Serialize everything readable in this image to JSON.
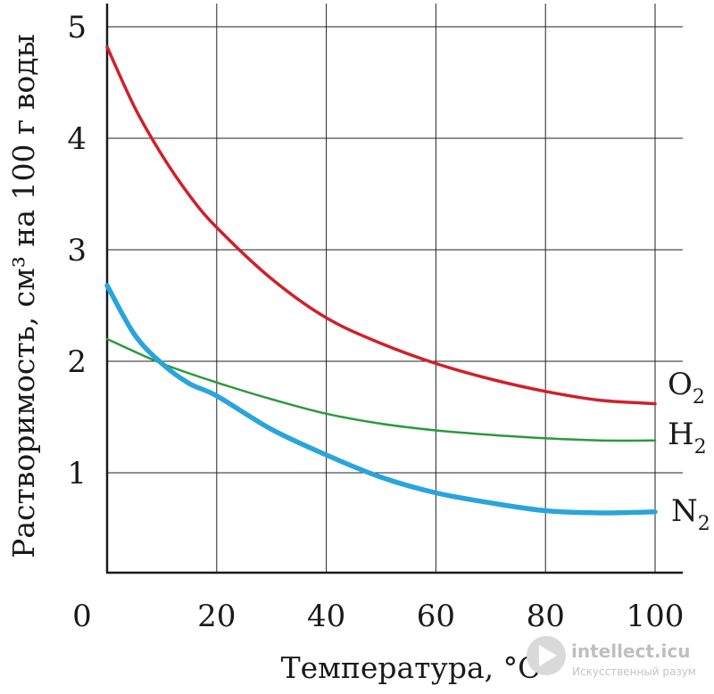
{
  "chart_data": {
    "type": "line",
    "xlabel": "Температура, °C",
    "ylabel": "Растворимость, см³ на 100 г воды",
    "xlim": [
      0,
      105
    ],
    "ylim": [
      0,
      5.2
    ],
    "x_ticks": [
      {
        "value": 0,
        "label": "0"
      },
      {
        "value": 20,
        "label": "20"
      },
      {
        "value": 40,
        "label": "40"
      },
      {
        "value": 60,
        "label": "60"
      },
      {
        "value": 80,
        "label": "80"
      },
      {
        "value": 100,
        "label": "100"
      }
    ],
    "y_ticks": [
      {
        "value": 1,
        "label": "1"
      },
      {
        "value": 2,
        "label": "2"
      },
      {
        "value": 3,
        "label": "3"
      },
      {
        "value": 4,
        "label": "4"
      },
      {
        "value": 5,
        "label": "5"
      }
    ],
    "grid": true,
    "series": [
      {
        "name": "O",
        "subscript": "2",
        "color": "#d0202a",
        "x": [
          0,
          5,
          10,
          15,
          20,
          30,
          40,
          50,
          60,
          70,
          80,
          90,
          100
        ],
        "values": [
          4.82,
          4.28,
          3.85,
          3.49,
          3.2,
          2.74,
          2.39,
          2.16,
          1.98,
          1.84,
          1.73,
          1.65,
          1.62
        ]
      },
      {
        "name": "H",
        "subscript": "2",
        "color": "#2a9a3c",
        "x": [
          0,
          10,
          20,
          30,
          40,
          50,
          60,
          70,
          80,
          90,
          100
        ],
        "values": [
          2.2,
          1.98,
          1.81,
          1.66,
          1.53,
          1.44,
          1.38,
          1.34,
          1.31,
          1.29,
          1.29
        ]
      },
      {
        "name": "N",
        "subscript": "2",
        "color": "#2aa4dc",
        "x": [
          0,
          5,
          10,
          15,
          20,
          30,
          40,
          50,
          60,
          70,
          80,
          90,
          100
        ],
        "values": [
          2.68,
          2.24,
          1.98,
          1.8,
          1.69,
          1.39,
          1.16,
          0.96,
          0.82,
          0.73,
          0.66,
          0.64,
          0.65
        ]
      }
    ]
  },
  "watermark": {
    "name": "intellect.icu",
    "tagline": "Искусственный разум"
  }
}
